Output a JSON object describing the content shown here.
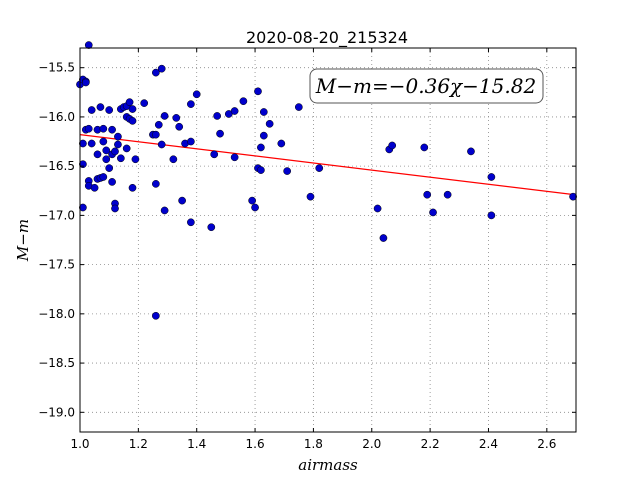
{
  "chart_data": {
    "type": "scatter",
    "title": "2020-08-20_215324",
    "xlabel": "airmass",
    "ylabel": "M−m",
    "xlim": [
      1.0,
      2.7
    ],
    "ylim": [
      -19.2,
      -15.3
    ],
    "y_inverted": true,
    "grid": true,
    "x_ticks": [
      1.0,
      1.2,
      1.4,
      1.6,
      1.8,
      2.0,
      2.2,
      2.4,
      2.6
    ],
    "x_tick_labels": [
      "1.0",
      "1.2",
      "1.4",
      "1.6",
      "1.8",
      "2.0",
      "2.2",
      "2.4",
      "2.6"
    ],
    "y_ticks": [
      -15.5,
      -16.0,
      -16.5,
      -17.0,
      -17.5,
      -18.0,
      -18.5,
      -19.0
    ],
    "y_tick_labels": [
      "−15.5",
      "−16.0",
      "−16.5",
      "−17.0",
      "−17.5",
      "−18.0",
      "−18.5",
      "−19.0"
    ],
    "annotation": "M−m=−0.36χ−15.82",
    "fit": {
      "slope": -0.36,
      "intercept": -15.82,
      "color": "#ff0000"
    },
    "point_color": "#0000cc",
    "points": [
      [
        1.0,
        -15.67
      ],
      [
        1.01,
        -15.62
      ],
      [
        1.02,
        -15.64
      ],
      [
        1.02,
        -15.65
      ],
      [
        1.03,
        -15.27
      ],
      [
        1.02,
        -16.13
      ],
      [
        1.03,
        -16.12
      ],
      [
        1.01,
        -16.27
      ],
      [
        1.01,
        -16.48
      ],
      [
        1.01,
        -16.92
      ],
      [
        1.03,
        -16.65
      ],
      [
        1.03,
        -16.7
      ],
      [
        1.04,
        -16.27
      ],
      [
        1.04,
        -15.93
      ],
      [
        1.05,
        -16.72
      ],
      [
        1.06,
        -16.38
      ],
      [
        1.06,
        -16.13
      ],
      [
        1.06,
        -16.63
      ],
      [
        1.07,
        -16.62
      ],
      [
        1.07,
        -15.9
      ],
      [
        1.08,
        -16.61
      ],
      [
        1.08,
        -16.25
      ],
      [
        1.08,
        -16.12
      ],
      [
        1.09,
        -16.43
      ],
      [
        1.09,
        -16.34
      ],
      [
        1.1,
        -15.93
      ],
      [
        1.1,
        -16.52
      ],
      [
        1.11,
        -16.13
      ],
      [
        1.11,
        -16.66
      ],
      [
        1.11,
        -16.38
      ],
      [
        1.12,
        -16.88
      ],
      [
        1.12,
        -16.93
      ],
      [
        1.12,
        -16.35
      ],
      [
        1.13,
        -16.2
      ],
      [
        1.13,
        -16.28
      ],
      [
        1.14,
        -15.92
      ],
      [
        1.14,
        -16.42
      ],
      [
        1.15,
        -15.9
      ],
      [
        1.16,
        -15.89
      ],
      [
        1.16,
        -16.0
      ],
      [
        1.16,
        -16.32
      ],
      [
        1.17,
        -15.85
      ],
      [
        1.17,
        -16.02
      ],
      [
        1.18,
        -16.04
      ],
      [
        1.18,
        -15.92
      ],
      [
        1.18,
        -16.72
      ],
      [
        1.19,
        -16.43
      ],
      [
        1.22,
        -15.86
      ],
      [
        1.25,
        -16.18
      ],
      [
        1.26,
        -15.55
      ],
      [
        1.26,
        -16.18
      ],
      [
        1.26,
        -16.68
      ],
      [
        1.26,
        -18.02
      ],
      [
        1.27,
        -16.08
      ],
      [
        1.28,
        -15.51
      ],
      [
        1.28,
        -16.28
      ],
      [
        1.29,
        -16.95
      ],
      [
        1.29,
        -15.99
      ],
      [
        1.32,
        -16.43
      ],
      [
        1.33,
        -16.01
      ],
      [
        1.34,
        -16.1
      ],
      [
        1.35,
        -16.85
      ],
      [
        1.36,
        -16.27
      ],
      [
        1.38,
        -16.25
      ],
      [
        1.38,
        -15.87
      ],
      [
        1.38,
        -17.07
      ],
      [
        1.4,
        -15.77
      ],
      [
        1.45,
        -17.12
      ],
      [
        1.46,
        -16.38
      ],
      [
        1.47,
        -15.99
      ],
      [
        1.48,
        -16.17
      ],
      [
        1.51,
        -15.97
      ],
      [
        1.53,
        -15.94
      ],
      [
        1.53,
        -16.41
      ],
      [
        1.56,
        -15.84
      ],
      [
        1.59,
        -16.85
      ],
      [
        1.6,
        -16.92
      ],
      [
        1.61,
        -16.52
      ],
      [
        1.61,
        -15.74
      ],
      [
        1.62,
        -16.54
      ],
      [
        1.62,
        -16.31
      ],
      [
        1.63,
        -16.19
      ],
      [
        1.63,
        -15.95
      ],
      [
        1.65,
        -16.07
      ],
      [
        1.69,
        -16.27
      ],
      [
        1.71,
        -16.55
      ],
      [
        1.75,
        -15.9
      ],
      [
        1.79,
        -16.81
      ],
      [
        1.82,
        -16.52
      ],
      [
        2.02,
        -16.93
      ],
      [
        2.04,
        -17.23
      ],
      [
        2.06,
        -16.33
      ],
      [
        2.07,
        -16.29
      ],
      [
        2.18,
        -16.31
      ],
      [
        2.19,
        -16.79
      ],
      [
        2.21,
        -16.97
      ],
      [
        2.26,
        -16.79
      ],
      [
        2.34,
        -16.35
      ],
      [
        2.41,
        -16.61
      ],
      [
        2.41,
        -17.0
      ],
      [
        2.69,
        -16.81
      ]
    ]
  }
}
